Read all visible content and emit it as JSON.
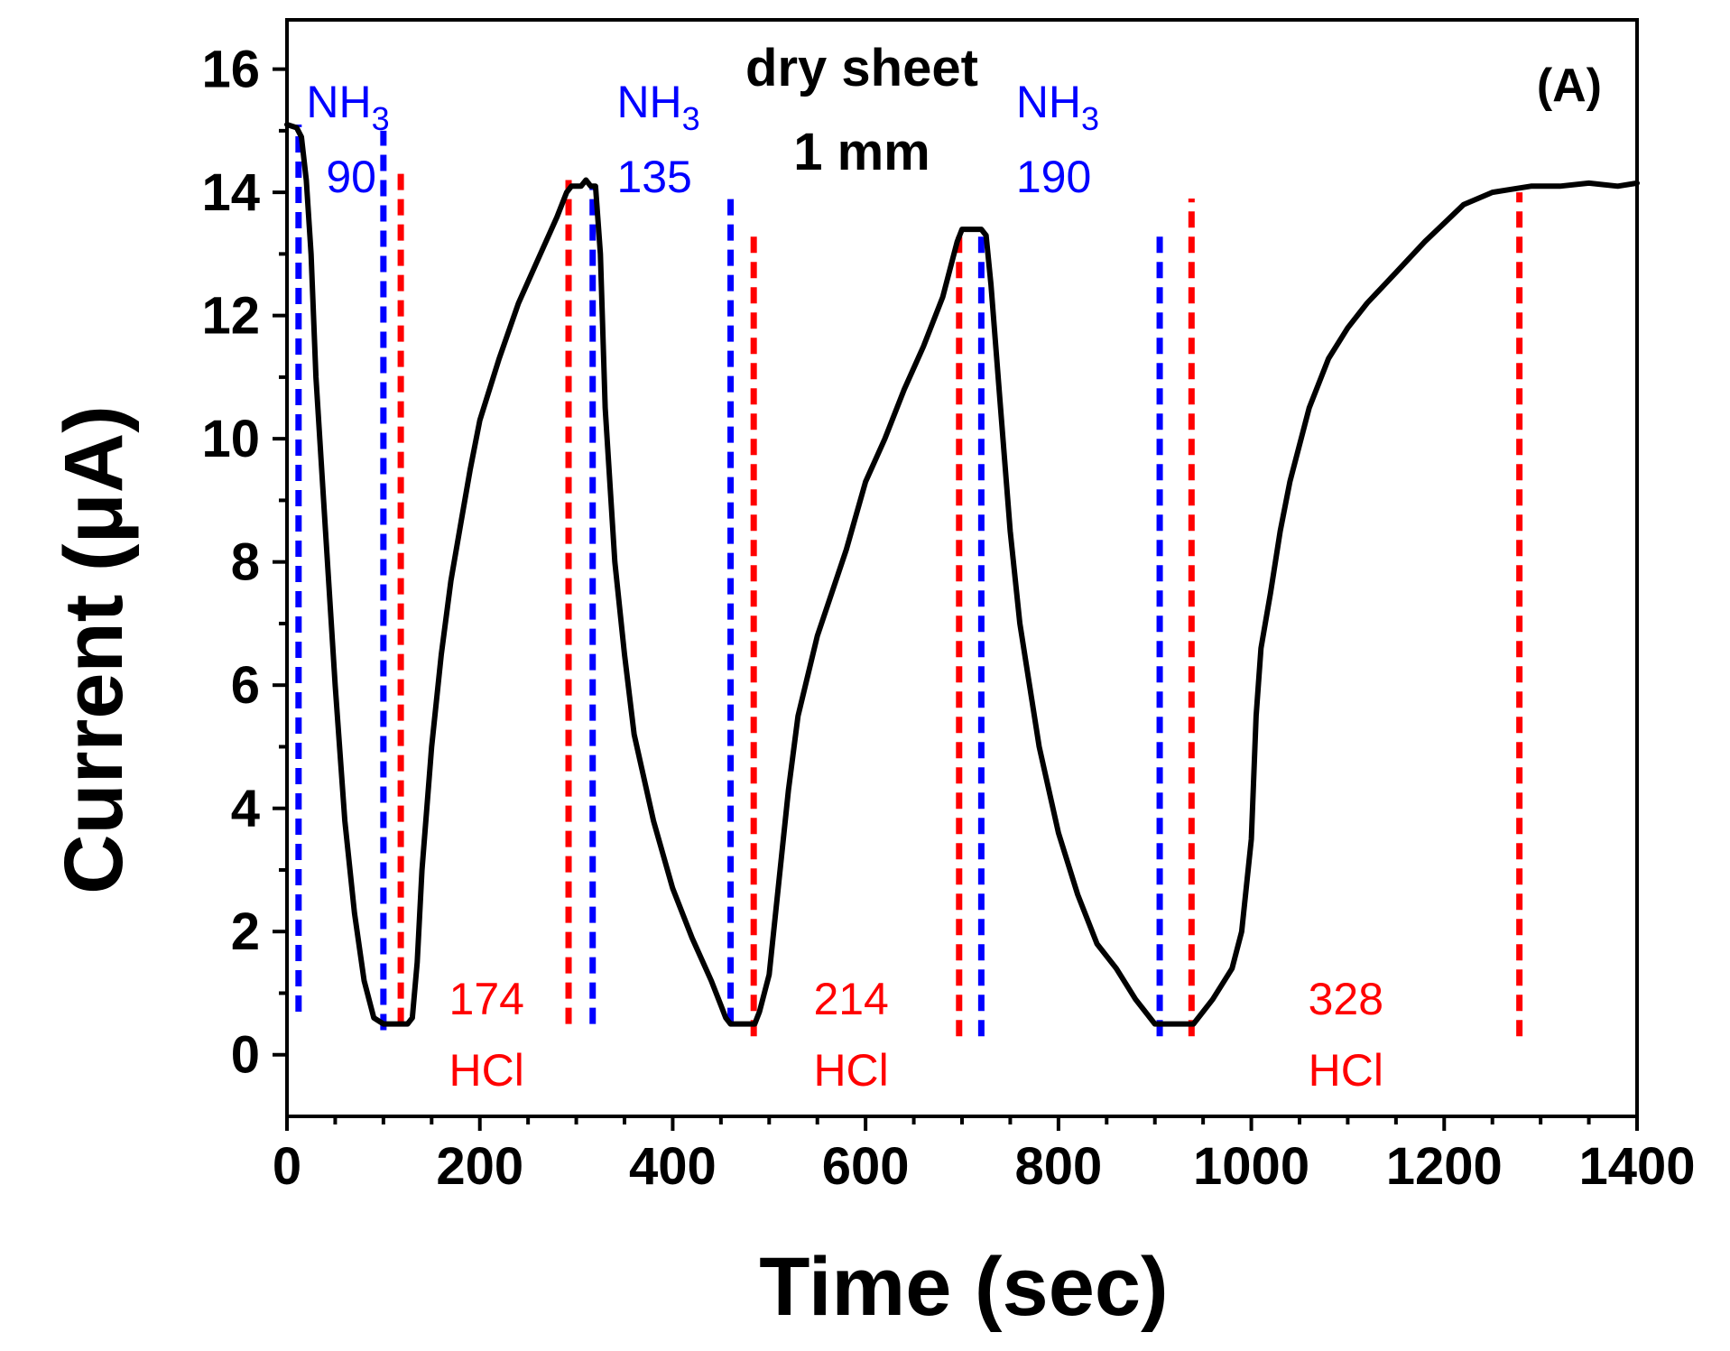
{
  "chart_data": {
    "type": "line",
    "xlabel": "Time (sec)",
    "ylabel": "Current (μA)",
    "xlim": [
      0,
      1400
    ],
    "ylim": [
      -1,
      16.8
    ],
    "xticks": [
      0,
      200,
      400,
      600,
      800,
      1000,
      1200,
      1400
    ],
    "yticks": [
      0,
      2,
      4,
      6,
      8,
      10,
      12,
      14,
      16
    ],
    "x_minor_step": 50,
    "y_minor_step": 1,
    "grid": false,
    "colors": {
      "line": "#000000",
      "nh3": "#0000ff",
      "hcl": "#ff0000"
    },
    "series": [
      {
        "x": [
          0,
          10,
          15,
          20,
          25,
          30,
          40,
          50,
          60,
          70,
          80,
          90,
          95,
          100,
          110,
          120,
          125,
          130,
          135,
          140,
          150,
          160,
          170,
          180,
          190,
          200,
          220,
          240,
          260,
          280,
          290,
          295,
          300,
          305,
          310,
          315,
          320,
          325,
          330,
          340,
          350,
          360,
          380,
          400,
          420,
          440,
          450,
          455,
          460,
          470,
          480,
          485,
          490,
          500,
          510,
          520,
          530,
          550,
          580,
          600,
          620,
          640,
          660,
          680,
          690,
          695,
          700,
          705,
          710,
          715,
          720,
          725,
          730,
          740,
          750,
          760,
          780,
          800,
          820,
          840,
          860,
          880,
          900,
          910,
          920,
          930,
          940,
          960,
          980,
          990,
          1000,
          1005,
          1010,
          1020,
          1030,
          1040,
          1060,
          1080,
          1100,
          1120,
          1150,
          1180,
          1200,
          1220,
          1250,
          1270,
          1290,
          1300,
          1320,
          1350,
          1380,
          1400
        ],
        "y": [
          15.1,
          15.05,
          14.9,
          14.2,
          13.0,
          11.0,
          8.5,
          6.0,
          3.8,
          2.3,
          1.2,
          0.6,
          0.55,
          0.5,
          0.5,
          0.5,
          0.5,
          0.6,
          1.5,
          3.0,
          5.0,
          6.5,
          7.7,
          8.6,
          9.5,
          10.3,
          11.3,
          12.2,
          12.9,
          13.6,
          14.0,
          14.1,
          14.1,
          14.1,
          14.2,
          14.1,
          14.1,
          13.0,
          10.5,
          8.0,
          6.5,
          5.2,
          3.8,
          2.7,
          1.9,
          1.2,
          0.8,
          0.6,
          0.5,
          0.5,
          0.5,
          0.5,
          0.7,
          1.3,
          2.8,
          4.3,
          5.5,
          6.8,
          8.2,
          9.3,
          10.0,
          10.8,
          11.5,
          12.3,
          12.9,
          13.2,
          13.4,
          13.4,
          13.4,
          13.4,
          13.4,
          13.3,
          12.5,
          10.5,
          8.5,
          7.0,
          5.0,
          3.6,
          2.6,
          1.8,
          1.4,
          0.9,
          0.5,
          0.5,
          0.5,
          0.5,
          0.5,
          0.9,
          1.4,
          2.0,
          3.5,
          5.5,
          6.6,
          7.5,
          8.5,
          9.3,
          10.5,
          11.3,
          11.8,
          12.2,
          12.7,
          13.2,
          13.5,
          13.8,
          14.0,
          14.05,
          14.1,
          14.1,
          14.1,
          14.15,
          14.1,
          14.15
        ]
      }
    ],
    "markers": {
      "nh3_lines": [
        {
          "x": 12,
          "y0": 0.7,
          "y1": 15.1
        },
        {
          "x": 100,
          "y0": 0.4,
          "y1": 15.0
        },
        {
          "x": 317,
          "y0": 0.5,
          "y1": 14.1
        },
        {
          "x": 460,
          "y0": 0.5,
          "y1": 14.0
        },
        {
          "x": 720,
          "y0": 0.3,
          "y1": 13.4
        },
        {
          "x": 905,
          "y0": 0.3,
          "y1": 13.3
        }
      ],
      "hcl_lines": [
        {
          "x": 118,
          "y0": 0.5,
          "y1": 14.3
        },
        {
          "x": 292,
          "y0": 0.5,
          "y1": 14.2
        },
        {
          "x": 484,
          "y0": 0.3,
          "y1": 13.4
        },
        {
          "x": 697,
          "y0": 0.3,
          "y1": 13.3
        },
        {
          "x": 938,
          "y0": 0.3,
          "y1": 13.9
        },
        {
          "x": 1278,
          "y0": 0.3,
          "y1": 14.0
        }
      ]
    },
    "annotations": {
      "panel": "(A)",
      "title_line1": "dry sheet",
      "title_line2": "1 mm",
      "nh3": [
        {
          "label": "NH",
          "sub": "3",
          "value": "90",
          "x": 20
        },
        {
          "label": "NH",
          "sub": "3",
          "value": "135",
          "x": 342
        },
        {
          "label": "NH",
          "sub": "3",
          "value": "190",
          "x": 756
        }
      ],
      "hcl": [
        {
          "value": "174",
          "label": "HCl",
          "x": 168
        },
        {
          "value": "214",
          "label": "HCl",
          "x": 546
        },
        {
          "value": "328",
          "label": "HCl",
          "x": 1059
        }
      ]
    }
  }
}
